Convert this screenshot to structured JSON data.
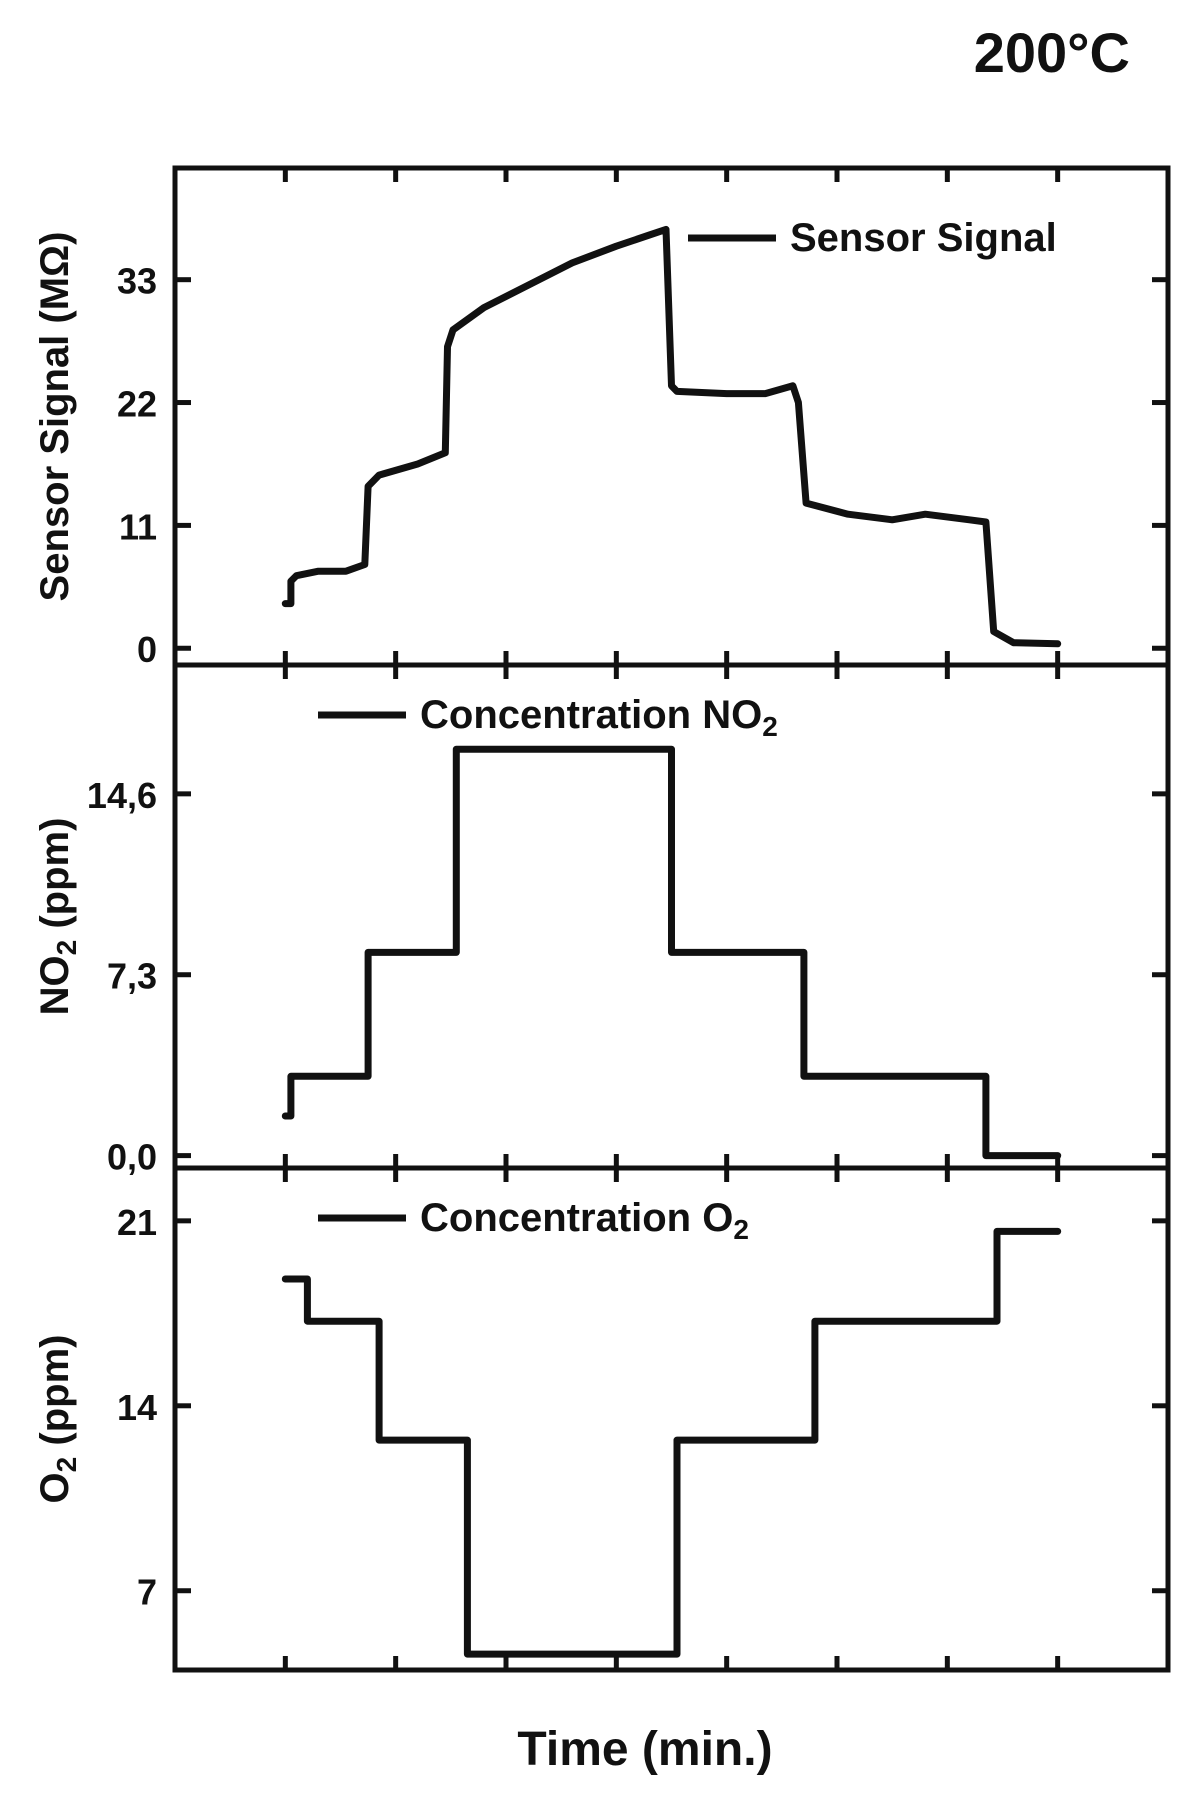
{
  "figure": {
    "title": "200°C",
    "xlabel": "Time (min.)"
  },
  "chart_data": [
    {
      "type": "line",
      "panel": "top",
      "ylabel": "Sensor Signal (MΩ)",
      "ylim": [
        -1.5,
        43
      ],
      "yticks": [
        "0",
        "11",
        "22",
        "33"
      ],
      "ytick_values": [
        0,
        11,
        22,
        33
      ],
      "xlim": [
        0,
        9
      ],
      "grid": false,
      "legend_position": "top-right",
      "series": [
        {
          "name": "Sensor Signal",
          "x": [
            1.0,
            1.05,
            1.05,
            1.1,
            1.3,
            1.55,
            1.72,
            1.75,
            1.85,
            2.2,
            2.45,
            2.47,
            2.52,
            2.8,
            3.2,
            3.6,
            4.0,
            4.3,
            4.45,
            4.5,
            4.55,
            5.0,
            5.35,
            5.6,
            5.65,
            5.72,
            6.1,
            6.5,
            6.8,
            7.2,
            7.35,
            7.42,
            7.6,
            8.0
          ],
          "y": [
            4.0,
            4.0,
            6.0,
            6.5,
            6.9,
            6.9,
            7.5,
            14.5,
            15.5,
            16.5,
            17.5,
            27.0,
            28.5,
            30.5,
            32.5,
            34.5,
            36.0,
            37.0,
            37.5,
            23.5,
            23.0,
            22.8,
            22.8,
            23.5,
            22.0,
            13.0,
            12.0,
            11.5,
            12.0,
            11.5,
            11.3,
            1.5,
            0.5,
            0.4
          ]
        }
      ]
    },
    {
      "type": "line",
      "panel": "middle",
      "ylabel": "NO2 (ppm)",
      "ylim": [
        -0.5,
        19.8
      ],
      "yticks": [
        "0,0",
        "7,3",
        "14,6"
      ],
      "ytick_values": [
        0,
        7.3,
        14.6
      ],
      "xlim": [
        0,
        9
      ],
      "grid": false,
      "legend_position": "top-left",
      "series": [
        {
          "name": "Concentration NO2",
          "x": [
            1.0,
            1.05,
            1.05,
            1.75,
            1.75,
            2.55,
            2.55,
            4.5,
            4.5,
            5.7,
            5.7,
            7.35,
            7.35,
            8.0
          ],
          "y": [
            1.6,
            1.6,
            3.2,
            3.2,
            8.2,
            8.2,
            16.4,
            16.4,
            8.2,
            8.2,
            3.2,
            3.2,
            0.0,
            0.0
          ]
        }
      ]
    },
    {
      "type": "line",
      "panel": "bottom",
      "ylabel": "O2 (ppm)",
      "ylim": [
        4,
        23
      ],
      "yticks": [
        "7",
        "14",
        "21"
      ],
      "ytick_values": [
        7,
        14,
        21
      ],
      "xlim": [
        0,
        9
      ],
      "grid": false,
      "legend_position": "top-left",
      "series": [
        {
          "name": "Concentration O2",
          "x": [
            1.0,
            1.2,
            1.2,
            1.85,
            1.85,
            2.65,
            2.65,
            4.55,
            4.55,
            5.8,
            5.8,
            7.45,
            7.45,
            8.0
          ],
          "y": [
            18.8,
            18.8,
            17.2,
            17.2,
            12.7,
            12.7,
            4.6,
            4.6,
            12.7,
            12.7,
            17.2,
            17.2,
            20.6,
            20.6
          ]
        }
      ]
    }
  ]
}
